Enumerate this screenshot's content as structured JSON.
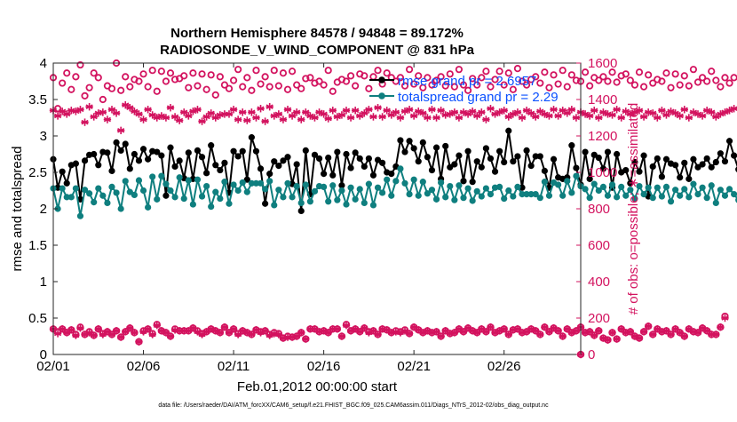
{
  "chart_data": {
    "type": "line",
    "title_line1": "Northern Hemisphere 84578 / 94848 = 89.172%",
    "title_line2": "RADIOSONDE_V_WIND_COMPONENT @ 831 hPa",
    "xlabel": "Feb.01,2012 00:00:00 start",
    "ylabel_left": "rmse and totalspread",
    "ylabel_right": "# of obs: o=possible; ∗=assimilated",
    "footer": "data file: /Users/raeder/DAI/ATM_forcXX/CAM6_setup/f.e21.FHIST_BGC.f09_025.CAM6assim.011/Diags_NTrS_2012-02/obs_diag_output.nc",
    "xlim": [
      0,
      29.25
    ],
    "ylim_left": [
      0,
      4
    ],
    "ylim_right": [
      0,
      1600
    ],
    "x_tick_positions": [
      0,
      5,
      10,
      15,
      20,
      25
    ],
    "x_tick_labels": [
      "02/01",
      "02/06",
      "02/11",
      "02/16",
      "02/21",
      "02/26"
    ],
    "y_left_ticks": [
      "0",
      "0.5",
      "1",
      "1.5",
      "2",
      "2.5",
      "3",
      "3.5",
      "4"
    ],
    "y_right_ticks": [
      "0",
      "200",
      "400",
      "600",
      "800",
      "1000",
      "1200",
      "1400",
      "1600"
    ],
    "legend": {
      "placement": "top-right",
      "entries": [
        "rmse grand pr = 2.6957",
        "totalspread grand pr = 2.29"
      ]
    },
    "colors": {
      "rmse": "#000000",
      "spread": "#0f7f7f",
      "obs": "#d3135f",
      "legend_text": "#0a50ff"
    },
    "step_days": 0.25,
    "series": [
      {
        "name": "rmse",
        "axis": "left",
        "values": [
          2.68,
          2.29,
          2.51,
          2.35,
          2.6,
          2.62,
          2.13,
          2.66,
          2.74,
          2.75,
          2.6,
          2.78,
          2.77,
          2.52,
          2.91,
          2.8,
          2.89,
          2.55,
          2.75,
          2.66,
          2.82,
          2.68,
          2.79,
          2.78,
          2.73,
          2.18,
          2.84,
          2.58,
          2.66,
          2.42,
          2.77,
          2.41,
          2.8,
          2.71,
          2.49,
          2.87,
          2.6,
          2.53,
          2.63,
          2.22,
          2.79,
          2.72,
          2.79,
          2.4,
          2.98,
          2.79,
          2.55,
          2.07,
          2.48,
          2.65,
          2.59,
          2.66,
          2.71,
          2.34,
          2.61,
          1.97,
          2.8,
          2.2,
          2.74,
          2.69,
          2.48,
          2.7,
          2.46,
          2.78,
          2.32,
          2.75,
          2.56,
          2.77,
          2.69,
          2.58,
          2.69,
          2.46,
          2.67,
          2.63,
          2.5,
          2.48,
          2.58,
          2.94,
          2.78,
          2.93,
          2.83,
          2.65,
          2.91,
          2.71,
          2.53,
          2.84,
          2.41,
          2.86,
          2.57,
          2.61,
          2.73,
          2.38,
          2.79,
          2.37,
          2.65,
          2.57,
          2.83,
          2.69,
          2.51,
          2.79,
          2.64,
          3.07,
          2.65,
          2.72,
          2.29,
          2.8,
          2.59,
          2.72,
          2.72,
          2.52,
          2.29,
          2.68,
          2.43,
          2.41,
          2.43,
          2.87,
          2.56,
          2.33,
          2.78,
          2.41,
          2.74,
          2.7,
          2.55,
          2.78,
          2.29,
          2.75,
          2.5,
          2.53,
          2.35,
          2.64,
          2.51,
          2.73,
          2.17,
          2.58,
          2.69,
          2.44,
          2.68,
          2.62,
          2.6,
          2.43,
          2.63,
          2.41,
          2.68,
          2.57,
          2.61,
          2.69,
          2.57,
          2.64,
          2.76,
          2.65,
          2.93,
          2.73,
          2.54,
          2.49
        ]
      },
      {
        "name": "totalspread",
        "axis": "left",
        "values": [
          2.28,
          2.0,
          2.28,
          2.16,
          2.16,
          2.28,
          1.9,
          2.26,
          2.21,
          2.09,
          2.28,
          2.18,
          2.08,
          2.3,
          2.22,
          2.0,
          2.38,
          2.23,
          2.19,
          2.39,
          2.25,
          2.02,
          2.44,
          2.13,
          2.45,
          2.34,
          2.25,
          2.16,
          2.43,
          2.14,
          2.39,
          2.06,
          2.4,
          2.17,
          2.31,
          2.03,
          2.23,
          2.14,
          2.37,
          2.07,
          2.33,
          2.25,
          2.36,
          2.23,
          2.35,
          2.35,
          2.35,
          2.27,
          2.38,
          2.05,
          2.26,
          2.16,
          2.35,
          2.16,
          2.31,
          2.08,
          2.33,
          2.1,
          2.24,
          2.31,
          2.3,
          2.1,
          2.32,
          2.12,
          2.25,
          2.06,
          2.29,
          2.13,
          2.27,
          2.08,
          2.34,
          2.05,
          2.29,
          2.22,
          2.4,
          2.18,
          2.38,
          2.55,
          2.35,
          2.2,
          2.4,
          2.18,
          2.37,
          2.21,
          2.26,
          2.13,
          2.36,
          2.16,
          2.31,
          2.12,
          2.32,
          2.15,
          2.28,
          2.11,
          2.24,
          2.17,
          2.28,
          2.2,
          2.29,
          2.3,
          2.14,
          2.25,
          2.17,
          2.3,
          2.2,
          2.2,
          2.2,
          2.2,
          2.15,
          2.37,
          2.18,
          2.36,
          2.33,
          2.18,
          2.38,
          2.22,
          2.45,
          2.31,
          2.27,
          2.15,
          2.34,
          2.25,
          2.3,
          2.18,
          2.33,
          2.16,
          2.3,
          2.18,
          2.26,
          2.14,
          2.31,
          2.2,
          2.29,
          2.15,
          2.29,
          2.17,
          2.3,
          2.1,
          2.26,
          2.18,
          2.27,
          2.16,
          2.34,
          2.2,
          2.29,
          2.15,
          2.32,
          2.08,
          2.26,
          2.18,
          2.27,
          2.2,
          2.12,
          2.09
        ]
      },
      {
        "name": "obs possible (upper)",
        "axis": "right",
        "values": [
          1520,
          1350,
          1490,
          1545,
          1455,
          1525,
          1590,
          1420,
          1465,
          1545,
          1520,
          1400,
          1475,
          1460,
          1600,
          1450,
          1525,
          1470,
          1510,
          1500,
          1540,
          1470,
          1560,
          1445,
          1555,
          1500,
          1545,
          1510,
          1515,
          1530,
          1465,
          1545,
          1475,
          1540,
          1455,
          1535,
          1425,
          1525,
          1480,
          1460,
          1505,
          1565,
          1470,
          1520,
          1450,
          1560,
          1485,
          1525,
          1470,
          1560,
          1475,
          1545,
          1455,
          1555,
          1480,
          1460,
          1515,
          1520,
          1490,
          1500,
          1480,
          1560,
          1445,
          1495,
          1510,
          1500,
          1530,
          1475,
          1540,
          1530,
          1460,
          1525,
          1560,
          1485,
          1545,
          1520,
          1500,
          1520,
          1475,
          1565,
          1485,
          1530,
          1465,
          1520,
          1480,
          1505,
          1525,
          1475,
          1540,
          1470,
          1565,
          1480,
          1450,
          1515,
          1480,
          1520,
          1555,
          1470,
          1510,
          1555,
          1480,
          1545,
          1455,
          1570,
          1500,
          1480,
          1510,
          1525,
          1490,
          1550,
          1465,
          1535,
          1485,
          1560,
          1470,
          1535,
          1505,
          1500,
          1550,
          1475,
          1520,
          1505,
          1525,
          1500,
          1550,
          1495,
          1530,
          1540,
          1505,
          1480,
          1550,
          1470,
          1535,
          1490,
          1510,
          1500,
          1545,
          1465,
          1540,
          1480,
          1530,
          1475,
          1565,
          1495,
          1520,
          1500,
          1555,
          1505,
          1470,
          1520,
          1490,
          1520
        ]
      },
      {
        "name": "obs assimilated (upper)",
        "axis": "right",
        "values": [
          1340,
          1310,
          1335,
          1320,
          1340,
          1335,
          1345,
          1275,
          1360,
          1305,
          1325,
          1330,
          1290,
          1345,
          1325,
          1230,
          1370,
          1355,
          1335,
          1320,
          1290,
          1345,
          1315,
          1300,
          1310,
          1300,
          1355,
          1305,
          1285,
          1330,
          1310,
          1335,
          1345,
          1280,
          1305,
          1325,
          1300,
          1315,
          1320,
          1320,
          1345,
          1290,
          1330,
          1285,
          1330,
          1300,
          1350,
          1280,
          1360,
          1310,
          1320,
          1290,
          1345,
          1310,
          1330,
          1290,
          1330,
          1310,
          1300,
          1330,
          1320,
          1295,
          1340,
          1305,
          1315,
          1340,
          1300,
          1340,
          1310,
          1325,
          1345,
          1305,
          1355,
          1305,
          1340,
          1315,
          1330,
          1300,
          1335,
          1345,
          1310,
          1335,
          1325,
          1300,
          1345,
          1300,
          1340,
          1315,
          1320,
          1330,
          1300,
          1330,
          1320,
          1335,
          1310,
          1330,
          1290,
          1350,
          1320,
          1330,
          1340,
          1305,
          1320,
          1330,
          1300,
          1340,
          1325,
          1305,
          1335,
          1320,
          1310,
          1345,
          1310,
          1340,
          1325,
          1345,
          1300,
          1330,
          1320,
          1310,
          1340,
          1300,
          1330,
          1320,
          1315,
          1345,
          1300,
          1335,
          1320,
          1330,
          1340,
          1305,
          1330,
          1325,
          1300,
          1340,
          1315,
          1335,
          1325,
          1310,
          1345,
          1300,
          1330,
          1320,
          1310,
          1340,
          1330,
          1305,
          1320,
          1330,
          1340,
          1350
        ]
      },
      {
        "name": "obs possible (lower)",
        "axis": "right",
        "values": [
          140,
          125,
          140,
          120,
          135,
          110,
          150,
          110,
          125,
          105,
          140,
          115,
          125,
          110,
          130,
          95,
          125,
          145,
          120,
          70,
          130,
          140,
          115,
          165,
          130,
          120,
          100,
          140,
          130,
          130,
          130,
          145,
          130,
          115,
          125,
          140,
          130,
          120,
          150,
          120,
          140,
          115,
          130,
          120,
          110,
          135,
          125,
          130,
          110,
          120,
          115,
          90,
          100,
          95,
          100,
          120,
          85,
          140,
          140,
          125,
          130,
          120,
          140,
          140,
          100,
          165,
          130,
          140,
          125,
          145,
          125,
          130,
          110,
          140,
          135,
          120,
          130,
          125,
          135,
          115,
          150,
          135,
          120,
          130,
          120,
          125,
          100,
          130,
          115,
          120,
          140,
          125,
          145,
          130,
          120,
          140,
          125,
          150,
          120,
          130,
          140,
          110,
          135,
          140,
          120,
          125,
          140,
          130,
          110,
          150,
          125,
          145,
          130,
          100,
          140,
          120,
          130,
          150,
          120,
          125,
          105,
          130,
          90,
          80,
          120,
          85,
          140,
          120,
          125,
          100,
          90,
          125,
          155,
          110,
          140,
          125,
          130,
          110,
          140,
          120,
          100,
          140,
          125,
          120,
          145,
          130,
          110,
          110,
          150,
          210
        ]
      },
      {
        "name": "obs assimilated (lower)",
        "axis": "right",
        "values": [
          140,
          115,
          140,
          120,
          135,
          105,
          145,
          110,
          120,
          105,
          140,
          110,
          125,
          110,
          130,
          95,
          125,
          145,
          120,
          70,
          125,
          140,
          110,
          160,
          130,
          120,
          100,
          135,
          130,
          130,
          130,
          145,
          125,
          110,
          125,
          140,
          130,
          120,
          150,
          120,
          140,
          110,
          130,
          120,
          110,
          135,
          120,
          130,
          105,
          115,
          110,
          90,
          95,
          95,
          100,
          120,
          85,
          140,
          140,
          125,
          130,
          120,
          140,
          140,
          100,
          160,
          130,
          140,
          125,
          145,
          120,
          130,
          110,
          140,
          135,
          120,
          125,
          120,
          130,
          115,
          150,
          135,
          120,
          130,
          120,
          125,
          100,
          130,
          115,
          120,
          140,
          125,
          145,
          130,
          120,
          140,
          125,
          150,
          120,
          130,
          140,
          110,
          135,
          140,
          120,
          125,
          140,
          130,
          110,
          150,
          125,
          145,
          130,
          100,
          140,
          120,
          130,
          150,
          120,
          125,
          105,
          130,
          90,
          80,
          120,
          85,
          140,
          120,
          125,
          100,
          90,
          125,
          155,
          110,
          140,
          125,
          130,
          110,
          140,
          120,
          100,
          140,
          125,
          120,
          145,
          130,
          110,
          110,
          150,
          200
        ]
      }
    ],
    "extra_points": [
      {
        "name": "obs possible",
        "x": 29.25,
        "value": 0
      },
      {
        "name": "obs assimilated",
        "x": 29.25,
        "value": 0
      }
    ]
  }
}
